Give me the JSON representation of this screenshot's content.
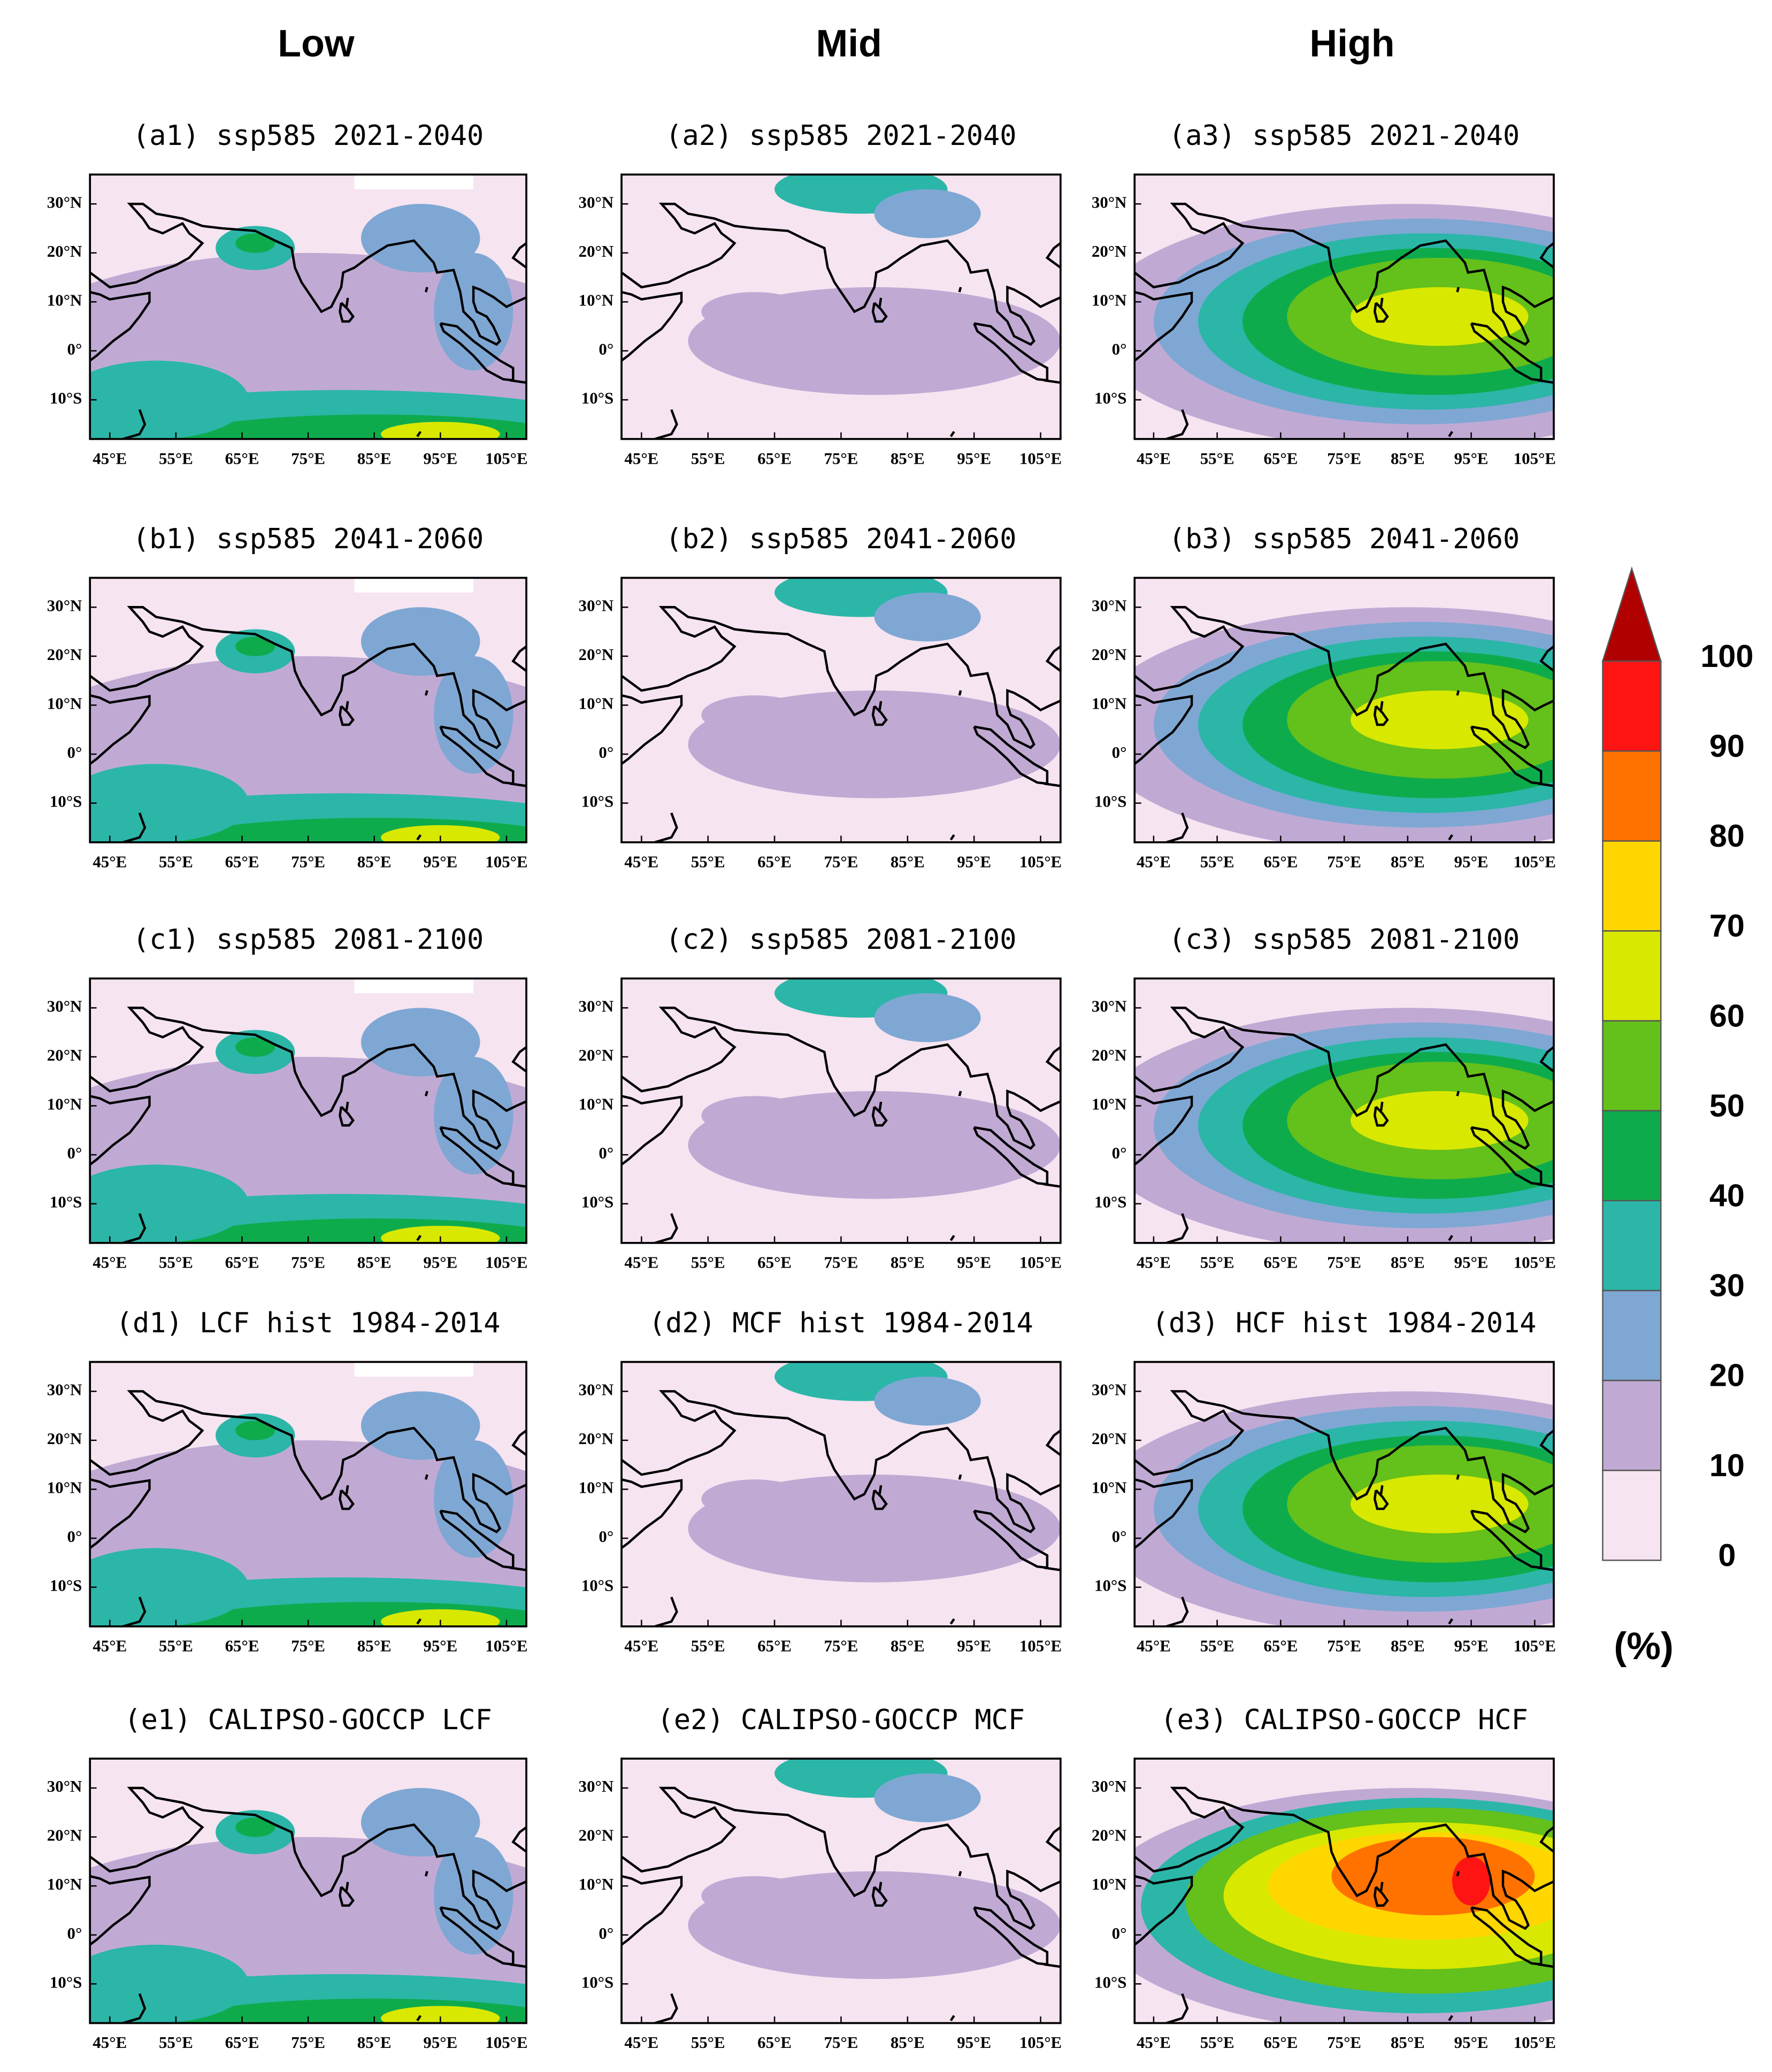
{
  "columns": [
    "Low",
    "Mid",
    "High"
  ],
  "rows": [
    [
      {
        "title": "(a1) ssp585 2021-2040"
      },
      {
        "title": "(a2) ssp585 2021-2040"
      },
      {
        "title": "(a3) ssp585 2021-2040"
      }
    ],
    [
      {
        "title": "(b1) ssp585 2041-2060"
      },
      {
        "title": "(b2) ssp585 2041-2060"
      },
      {
        "title": "(b3) ssp585 2041-2060"
      }
    ],
    [
      {
        "title": "(c1) ssp585 2081-2100"
      },
      {
        "title": "(c2) ssp585 2081-2100"
      },
      {
        "title": "(c3) ssp585 2081-2100"
      }
    ],
    [
      {
        "title": "(d1) LCF hist 1984-2014"
      },
      {
        "title": "(d2) MCF hist 1984-2014"
      },
      {
        "title": "(d3) HCF hist 1984-2014"
      }
    ],
    [
      {
        "title": "(e1) CALIPSO-GOCCP LCF"
      },
      {
        "title": "(e2) CALIPSO-GOCCP MCF"
      },
      {
        "title": "(e3) CALIPSO-GOCCP HCF"
      }
    ]
  ],
  "map": {
    "xlim": [
      42,
      108
    ],
    "ylim": [
      -18,
      36
    ],
    "xticks": [
      {
        "value": 45,
        "label": "45°E"
      },
      {
        "value": 55,
        "label": "55°E"
      },
      {
        "value": 65,
        "label": "65°E"
      },
      {
        "value": 75,
        "label": "75°E"
      },
      {
        "value": 85,
        "label": "85°E"
      },
      {
        "value": 95,
        "label": "95°E"
      },
      {
        "value": 105,
        "label": "105°E"
      }
    ],
    "yticks": [
      {
        "value": -10,
        "label": "10°S"
      },
      {
        "value": 0,
        "label": "0°"
      },
      {
        "value": 10,
        "label": "10°N"
      },
      {
        "value": 20,
        "label": "20°N"
      },
      {
        "value": 30,
        "label": "30°N"
      }
    ]
  },
  "colorbar": {
    "levels": [
      0,
      10,
      20,
      30,
      40,
      50,
      60,
      70,
      80,
      90,
      100
    ],
    "colors": [
      "#f6e4f1",
      "#c0aad4",
      "#7fa7d3",
      "#2bb6a8",
      "#0eab4d",
      "#64c01a",
      "#d8e800",
      "#ffd600",
      "#ff7200",
      "#ff1414",
      "#b00000"
    ],
    "unit": "(%)"
  }
}
